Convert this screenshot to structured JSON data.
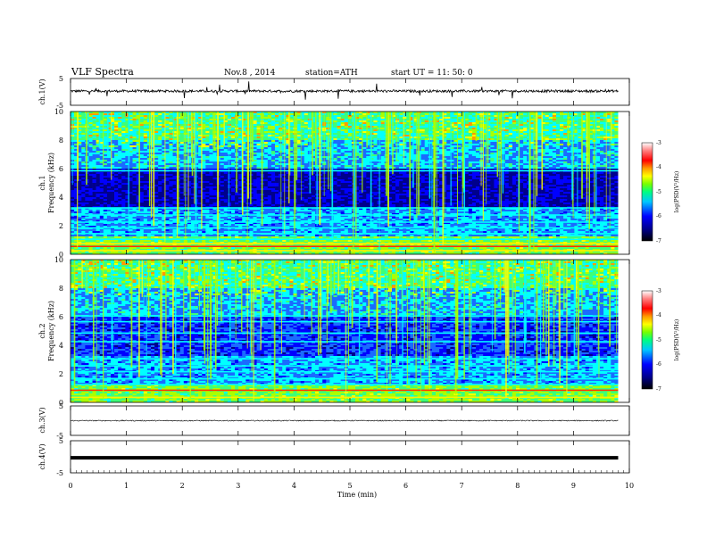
{
  "header": {
    "title": "VLF  Spectra",
    "date": "Nov.8  , 2014",
    "station": "station=ATH",
    "start": "start  UT  =   11: 50: 0"
  },
  "chart_data": {
    "type": "heatmap",
    "xlabel": "Time  (min)",
    "x_ticks": [
      "0",
      "1",
      "2",
      "3",
      "4",
      "5",
      "6",
      "7",
      "8",
      "9",
      "10"
    ],
    "xlim": [
      0,
      10
    ],
    "data_end_min": 9.8,
    "panels": [
      {
        "name": "ch1-voltage",
        "type": "line",
        "ylabel": "ch.1(V)",
        "ylim": [
          -5,
          5
        ],
        "y_ticks": [
          "5",
          "-5"
        ],
        "baseline_v": 0.3,
        "color": "#000000"
      },
      {
        "name": "ch1-spectrogram",
        "type": "heatmap",
        "ylabel_channel": "ch.1",
        "ylabel": "Frequency  (kHz)",
        "ylim": [
          0,
          10
        ],
        "y_ticks": [
          "0",
          "2",
          "4",
          "6",
          "8",
          "10"
        ],
        "colorbar": {
          "label": "log(PSD(V²/Hz)",
          "range": [
            -7,
            -3
          ],
          "ticks": [
            "-3",
            "-4",
            "-5",
            "-6",
            "-7"
          ]
        }
      },
      {
        "name": "ch2-spectrogram",
        "type": "heatmap",
        "ylabel_channel": "ch.2",
        "ylabel": "Frequency  (kHz)",
        "ylim": [
          0,
          10
        ],
        "y_ticks": [
          "0",
          "2",
          "4",
          "6",
          "8",
          "10"
        ],
        "colorbar": {
          "label": "log(PSD(V²/Hz)",
          "range": [
            -7,
            -3
          ],
          "ticks": [
            "-3",
            "-4",
            "-5",
            "-6",
            "-7"
          ]
        }
      },
      {
        "name": "ch3-voltage",
        "type": "line",
        "ylabel": "ch.3(V)",
        "ylim": [
          -5,
          5
        ],
        "y_ticks": [
          "5",
          "-5"
        ],
        "baseline_v": 0.0,
        "color": "#000000"
      },
      {
        "name": "ch4-voltage",
        "type": "line",
        "ylabel": "ch.4(V)",
        "ylim": [
          -5,
          5
        ],
        "y_ticks": [
          "5",
          "-5"
        ],
        "baseline_v": -0.3,
        "color": "#000000"
      }
    ],
    "colormap": [
      "#00008c",
      "#0000ff",
      "#1a6bff",
      "#00ffff",
      "#3cff78",
      "#aaff00",
      "#ffff00",
      "#ff9900",
      "#ff0000",
      "#ffffff"
    ]
  }
}
